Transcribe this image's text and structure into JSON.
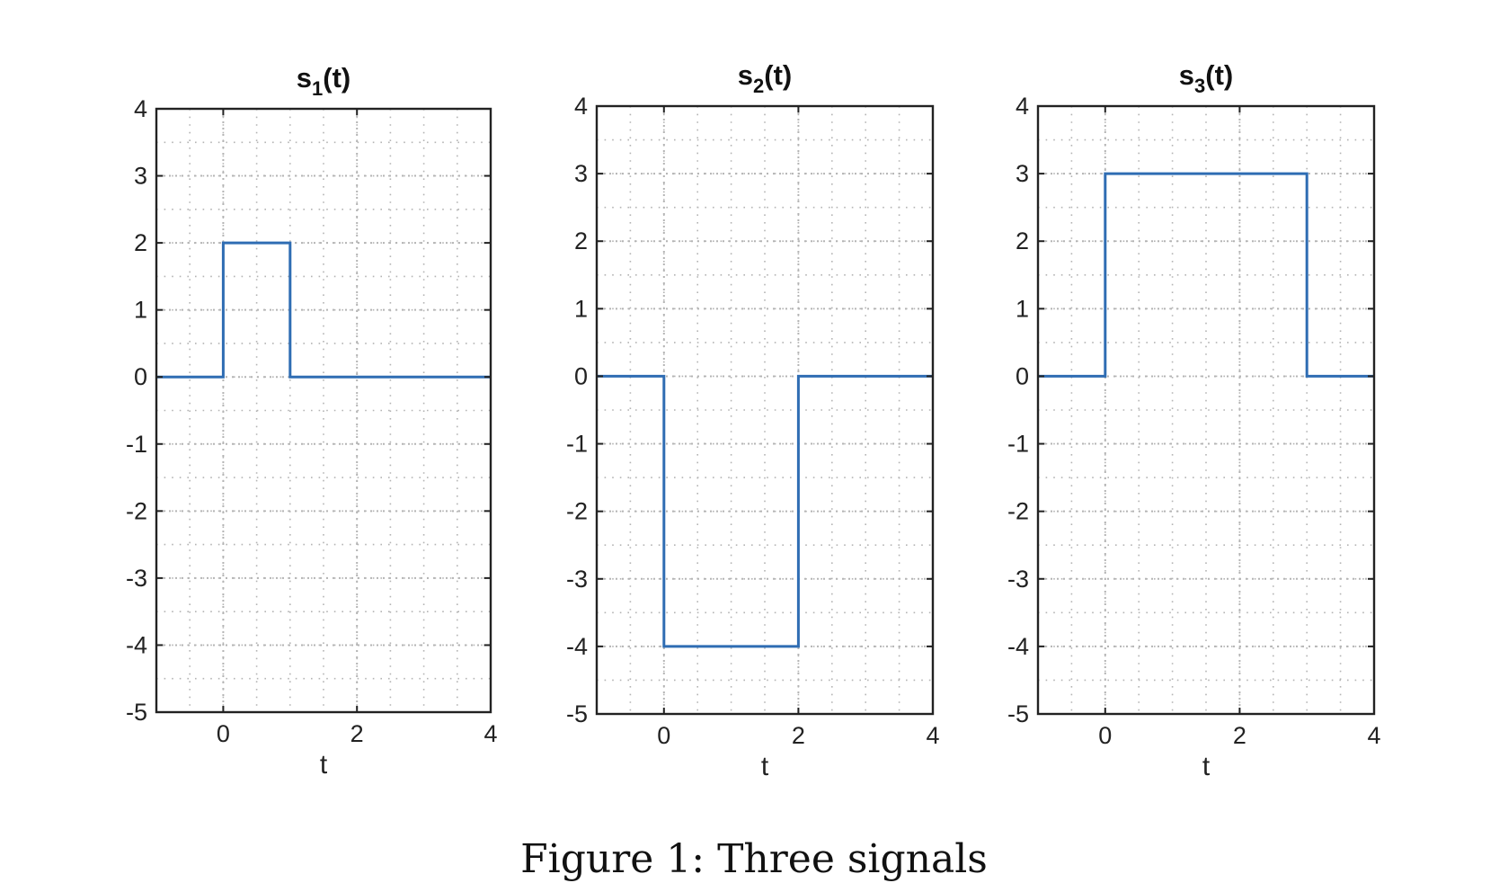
{
  "caption": "Figure 1: Three signals",
  "colors": {
    "line": "#2f6db3",
    "grid": "#b4b4b4",
    "axes": "#222222"
  },
  "chart_data": [
    {
      "type": "line",
      "title_base": "s",
      "title_sub": "1",
      "title_suffix": "(t)",
      "xlabel": "t",
      "ylabel": "",
      "xlim": [
        -1,
        4
      ],
      "ylim": [
        -5,
        4
      ],
      "xticks": [
        0,
        2,
        4
      ],
      "yticks": [
        -5,
        -4,
        -3,
        -2,
        -1,
        0,
        1,
        2,
        3,
        4
      ],
      "grid": true,
      "minor_grid": true,
      "series": [
        {
          "x": [
            -1,
            0,
            0,
            1,
            1,
            4
          ],
          "y": [
            0,
            0,
            2,
            2,
            0,
            0
          ]
        }
      ]
    },
    {
      "type": "line",
      "title_base": "s",
      "title_sub": "2",
      "title_suffix": "(t)",
      "xlabel": "t",
      "ylabel": "",
      "xlim": [
        -1,
        4
      ],
      "ylim": [
        -5,
        4
      ],
      "xticks": [
        0,
        2,
        4
      ],
      "yticks": [
        -5,
        -4,
        -3,
        -2,
        -1,
        0,
        1,
        2,
        3,
        4
      ],
      "grid": true,
      "minor_grid": true,
      "series": [
        {
          "x": [
            -1,
            0,
            0,
            2,
            2,
            4
          ],
          "y": [
            0,
            0,
            -4,
            -4,
            0,
            0
          ]
        }
      ]
    },
    {
      "type": "line",
      "title_base": "s",
      "title_sub": "3",
      "title_suffix": "(t)",
      "xlabel": "t",
      "ylabel": "",
      "xlim": [
        -1,
        4
      ],
      "ylim": [
        -5,
        4
      ],
      "xticks": [
        0,
        2,
        4
      ],
      "yticks": [
        -5,
        -4,
        -3,
        -2,
        -1,
        0,
        1,
        2,
        3,
        4
      ],
      "grid": true,
      "minor_grid": true,
      "series": [
        {
          "x": [
            -1,
            0,
            0,
            3,
            3,
            4
          ],
          "y": [
            0,
            0,
            3,
            3,
            0,
            0
          ]
        }
      ]
    }
  ]
}
